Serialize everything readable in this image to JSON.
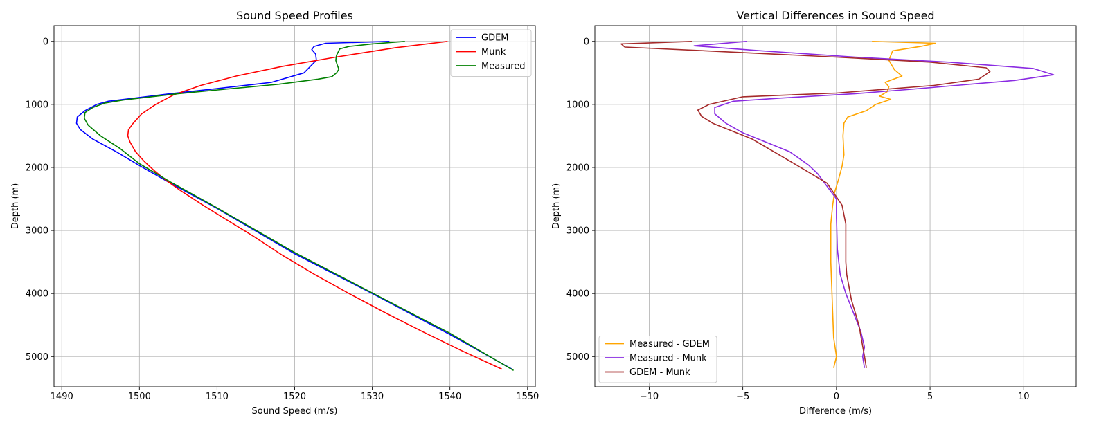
{
  "chart_data": [
    {
      "type": "line",
      "title": "Sound Speed Profiles",
      "xlabel": "Sound Speed (m/s)",
      "ylabel": "Depth (m)",
      "xlim": [
        1489,
        1551
      ],
      "ylim": [
        5480,
        -250
      ],
      "y_inverted": true,
      "grid": true,
      "legend_position": "top-right",
      "xticks": [
        1490,
        1500,
        1510,
        1520,
        1530,
        1540,
        1550
      ],
      "yticks": [
        0,
        1000,
        2000,
        3000,
        4000,
        5000
      ],
      "series": [
        {
          "name": "GDEM",
          "color": "#0000ff",
          "x": [
            1532.2,
            1524.0,
            1522.5,
            1522.2,
            1522.7,
            1522.8,
            1522.0,
            1521.2,
            1517.0,
            1510.0,
            1504.0,
            1500.0,
            1496.0,
            1494.5,
            1493.0,
            1492.0,
            1491.9,
            1492.4,
            1494.0,
            1497.0,
            1500.0,
            1504.0,
            1510.0,
            1520.0,
            1530.0,
            1540.0,
            1548.0
          ],
          "y": [
            0,
            30,
            80,
            130,
            200,
            300,
            400,
            500,
            650,
            750,
            830,
            890,
            950,
            1000,
            1100,
            1200,
            1300,
            1400,
            1550,
            1750,
            1970,
            2250,
            2650,
            3370,
            4000,
            4650,
            5200
          ]
        },
        {
          "name": "Munk",
          "color": "#ff0000",
          "x": [
            1539.7,
            1533.0,
            1525.3,
            1518.3,
            1512.5,
            1507.9,
            1504.4,
            1502.1,
            1500.3,
            1499.2,
            1498.6,
            1498.5,
            1498.8,
            1499.5,
            1500.6,
            1501.9,
            1503.4,
            1505.1,
            1508.2,
            1511.5,
            1514.8,
            1518.5,
            1522.6,
            1527.0,
            1531.6,
            1536.4,
            1541.4,
            1546.7
          ],
          "y": [
            0,
            100,
            250,
            400,
            550,
            700,
            850,
            1000,
            1150,
            1300,
            1400,
            1500,
            1600,
            1750,
            1900,
            2050,
            2200,
            2350,
            2600,
            2850,
            3100,
            3400,
            3700,
            4000,
            4300,
            4600,
            4900,
            5200
          ]
        },
        {
          "name": "Measured",
          "color": "#008000",
          "x": [
            1534.2,
            1530.0,
            1527.0,
            1525.8,
            1525.6,
            1525.4,
            1525.3,
            1525.5,
            1525.7,
            1525.4,
            1524.8,
            1523.0,
            1518.0,
            1511.0,
            1505.0,
            1501.5,
            1498.0,
            1495.5,
            1494.0,
            1493.0,
            1492.9,
            1493.4,
            1495.0,
            1497.5,
            1500.0,
            1504.0,
            1510.0,
            1520.0,
            1530.0,
            1540.0,
            1548.2
          ],
          "y": [
            0,
            40,
            80,
            120,
            170,
            220,
            300,
            380,
            440,
            500,
            560,
            600,
            680,
            760,
            830,
            880,
            930,
            980,
            1050,
            1130,
            1220,
            1330,
            1500,
            1700,
            1940,
            2230,
            2640,
            3350,
            3990,
            4630,
            5220
          ]
        }
      ]
    },
    {
      "type": "line",
      "title": "Vertical Differences in Sound Speed",
      "xlabel": "Difference (m/s)",
      "ylabel": "Depth (m)",
      "xlim": [
        -12.9,
        12.8
      ],
      "ylim": [
        5480,
        -250
      ],
      "y_inverted": true,
      "grid": true,
      "legend_position": "lower-left",
      "xticks": [
        -10,
        -5,
        0,
        5,
        10
      ],
      "yticks": [
        0,
        1000,
        2000,
        3000,
        4000,
        5000
      ],
      "series": [
        {
          "name": "Measured - GDEM",
          "color": "#ffa500",
          "x": [
            1.9,
            5.3,
            4.5,
            3.0,
            2.8,
            3.1,
            3.5,
            2.6,
            2.8,
            2.7,
            2.3,
            2.9,
            2.1,
            1.6,
            0.6,
            0.4,
            0.35,
            0.4,
            0.3,
            0.1,
            -0.1,
            -0.2,
            -0.3,
            -0.3,
            -0.3,
            -0.25,
            -0.2,
            -0.15,
            0.0,
            -0.15
          ],
          "y": [
            0,
            30,
            80,
            150,
            300,
            450,
            550,
            650,
            720,
            800,
            870,
            920,
            1000,
            1100,
            1200,
            1300,
            1500,
            1800,
            1980,
            2200,
            2400,
            2600,
            2900,
            3200,
            3500,
            3900,
            4300,
            4700,
            5000,
            5180
          ]
        },
        {
          "name": "Measured - Munk",
          "color": "#8a2be2",
          "x": [
            -4.8,
            -7.6,
            -4.0,
            1.0,
            6.0,
            10.5,
            11.6,
            9.5,
            4.0,
            1.0,
            -3.0,
            -5.5,
            -6.5,
            -6.5,
            -5.9,
            -5.0,
            -2.5,
            -1.5,
            -1.0,
            -0.5,
            0.0,
            0.0,
            0.05,
            0.2,
            0.5,
            0.9,
            1.3,
            1.5,
            1.4,
            1.5
          ],
          "y": [
            0,
            70,
            150,
            250,
            330,
            430,
            530,
            620,
            760,
            830,
            900,
            950,
            1050,
            1150,
            1300,
            1450,
            1750,
            1960,
            2100,
            2300,
            2500,
            2800,
            3300,
            3700,
            4000,
            4300,
            4600,
            4850,
            5000,
            5180
          ]
        },
        {
          "name": "GDEM - Munk",
          "color": "#a52a2a",
          "x": [
            -7.7,
            -11.5,
            -11.3,
            -7.0,
            0.0,
            5.0,
            8.0,
            8.2,
            7.6,
            5.2,
            0.0,
            -5.0,
            -6.8,
            -7.4,
            -7.2,
            -6.6,
            -4.5,
            -2.2,
            -0.5,
            0.3,
            0.5,
            0.5,
            0.5,
            0.55,
            0.8,
            1.2,
            1.5,
            1.6
          ],
          "y": [
            0,
            40,
            90,
            150,
            250,
            330,
            420,
            480,
            600,
            700,
            820,
            880,
            1000,
            1090,
            1190,
            1300,
            1550,
            1950,
            2250,
            2600,
            2900,
            3200,
            3500,
            3700,
            4100,
            4500,
            5000,
            5180
          ]
        }
      ]
    }
  ]
}
